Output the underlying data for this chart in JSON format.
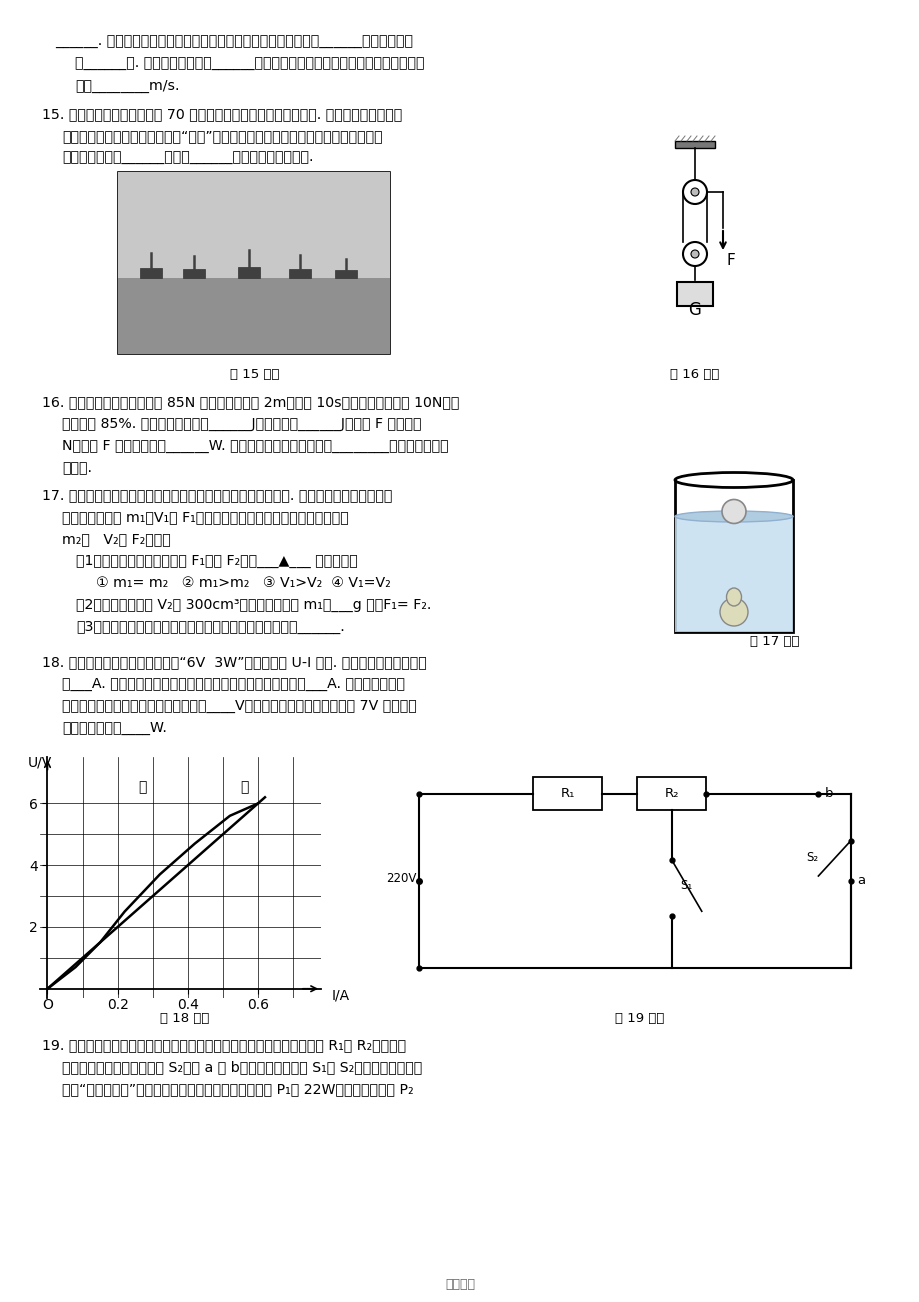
{
  "bg_color": "#ffffff",
  "footer": "推荐精选",
  "line_top1": "______. 液态氢燃烧产生的燃气推动火箭加速上升的过程，燃气的______能转化为火箭",
  "line_top2": "的______能. 地面控制中心通过______波向卫星发出指令，这种波在真空中传播的速",
  "line_top3": "度为________m/s.",
  "q15_1": "15. 中国人民解放军海军成立 70 周年之际，我国举行海上阅兵活动. 海军舰艇采用前后编",
  "q15_2": "队形式（如图所示），而不采用“并排”航行，是因为当两舰艇并排高速行驶时，两舰",
  "q15_3": "艇之间液体流速______，压强______，容易发生碰撞事故.",
  "label15": "第 15 题图",
  "label16": "第 16 题图",
  "q16_1": "16. 用如图所示的滑轮组将重 85N 的物体匀速提升 2m，用时 10s，已知动滑轮重为 10N，机",
  "q16_2": "械效率为 85%. 此过程中有用功为______J，额外功为______J，拉力 F 的大小为",
  "q16_3": "N，拉力 F 做功的功率为______W. 当该滑轮组的机械效率低于________时，使用它将不",
  "q16_4": "再省力.",
  "q17_1": "17. 如图所示，将苹果和梨子放入水中后，苹果漂浮，梨子沉底. 若苹果的质量、体积及受",
  "q17_2": "到的浮力分别为 m₁、V₁和 F₁，梨子的质量、体积及受到的浮力分别为",
  "q17_3": "m₂、   V₂和 F₂，则：",
  "q17_s1": "（1）以下几种条件中一定使 F₁大于 F₂的是___▲___ （填序号）",
  "q17_s2": "① m₁= m₂   ② m₁>m₂   ③ V₁>V₂  ④ V₁=V₂",
  "q17_s3": "（2）若梨子的体积 V₂为 300cm³，当苹果的质量 m₁为___g 时，F₁= F₂.",
  "q17_s4": "（3）若不增加器材，要增大水对梨子压强，具体的做法是______.",
  "label17": "第 17 题图",
  "q18_1": "18. 如图所示是定值电阻甲和标有“6V  3W”小灯泡乙的 U-I 图像. 灯泡正常发光时的电流",
  "q18_2": "为___A. 若将两者并联在电路中，干路允许通过的最大电流为___A. 若将两者串联在",
  "q18_3": "电路中，该电路两端允许的最大电压为____V，若此时该电路两端的电压为 7V 时，电路",
  "q18_4": "消耗的总功率为____W.",
  "label18": "第 18 题图",
  "label19": "第 19 题图",
  "q19_1": "19. 智能电热马桶已经进入现代家庭，如图是简易的便座加热电路，电阵 R₁和 R₂是阵值恆",
  "q19_2": "定的电热丝，单刀双掷开关 S₂可接 a 或 b，该电路通过开关 S₁和 S₂的不同接法组合，",
  "q19_3": "实现“高、中、低”挡三种加热功能，其中低温挡的功率 P₁为 22W，中温挡的功率 P₂"
}
